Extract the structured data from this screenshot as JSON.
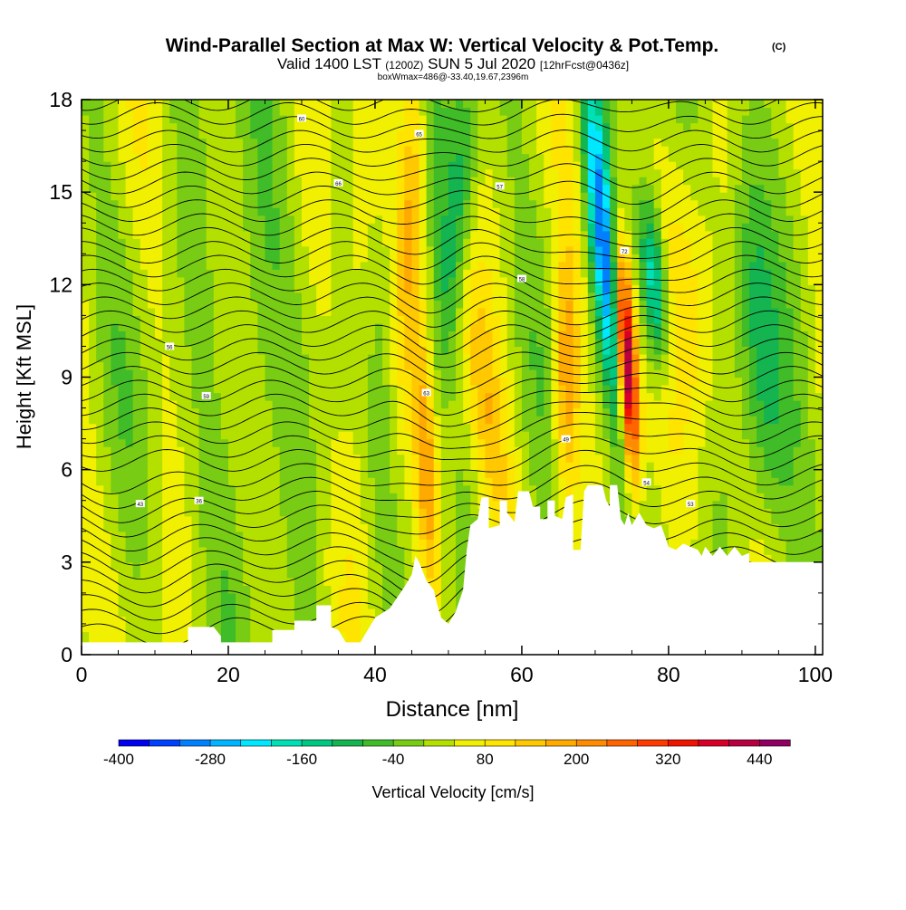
{
  "chart_data": {
    "type": "heatmap",
    "title": "Wind-Parallel Section at Max W: Vertical Velocity & Pot.Temp.",
    "title_mark": "(C)",
    "subtitle": {
      "valid_prefix": "Valid 1400 LST",
      "utc": "(1200Z)",
      "date": "SUN 5 Jul 2020",
      "forecast": "[12hrFcst@0436z]"
    },
    "note": "boxWmax=486@-33.40,19.67,2396m",
    "xlabel": "Distance [nm]",
    "ylabel": "Height [Kft MSL]",
    "xlim": [
      0,
      101
    ],
    "ylim": [
      0,
      18
    ],
    "x_ticks": [
      "0",
      "20",
      "40",
      "60",
      "80",
      "100"
    ],
    "y_ticks": [
      "0",
      "3",
      "6",
      "9",
      "12",
      "15",
      "18"
    ],
    "colorbar": {
      "label": "Vertical Velocity [cm/s]",
      "tick_labels": [
        "-400",
        "-280",
        "-160",
        "-40",
        "80",
        "200",
        "320",
        "440"
      ],
      "levels": [
        -400,
        -360,
        -320,
        -280,
        -240,
        -200,
        -160,
        -120,
        -80,
        -40,
        0,
        40,
        80,
        120,
        160,
        200,
        240,
        280,
        320,
        360,
        400,
        440,
        480
      ],
      "colors": [
        "#0000f0",
        "#0040ff",
        "#0080ff",
        "#00b4ff",
        "#00e8ff",
        "#00e0b4",
        "#00c880",
        "#14b450",
        "#40bc28",
        "#78cc14",
        "#b4e000",
        "#f0f000",
        "#ffe400",
        "#ffc800",
        "#ffaa00",
        "#ff8c00",
        "#ff6400",
        "#ff3c00",
        "#f01400",
        "#d80028",
        "#b80040",
        "#900060"
      ]
    },
    "terrain_kft": [
      [
        0,
        0.4
      ],
      [
        3,
        0.4
      ],
      [
        8,
        0.4
      ],
      [
        12,
        0.4
      ],
      [
        14.5,
        0.4
      ],
      [
        14.5,
        0.9
      ],
      [
        16,
        0.9
      ],
      [
        18,
        0.9
      ],
      [
        19,
        0.6
      ],
      [
        19,
        0.4
      ],
      [
        26,
        0.4
      ],
      [
        26,
        0.8
      ],
      [
        29,
        0.8
      ],
      [
        29,
        1.1
      ],
      [
        32,
        1.1
      ],
      [
        32,
        1.6
      ],
      [
        34,
        1.6
      ],
      [
        34,
        0.9
      ],
      [
        35,
        0.8
      ],
      [
        36,
        0.4
      ],
      [
        38,
        0.4
      ],
      [
        39,
        0.8
      ],
      [
        40,
        1.2
      ],
      [
        42,
        1.5
      ],
      [
        44,
        2.2
      ],
      [
        45,
        2.6
      ],
      [
        45.5,
        3.2
      ],
      [
        46,
        3.0
      ],
      [
        47,
        2.4
      ],
      [
        48,
        2.1
      ],
      [
        48.5,
        1.6
      ],
      [
        49,
        1.2
      ],
      [
        50,
        1.0
      ],
      [
        51,
        1.4
      ],
      [
        52,
        2.1
      ],
      [
        52.5,
        3.4
      ],
      [
        53,
        4.2
      ],
      [
        54,
        4.4
      ],
      [
        54.5,
        5.1
      ],
      [
        55.5,
        5.1
      ],
      [
        55.5,
        4.1
      ],
      [
        57,
        4.2
      ],
      [
        57,
        5.0
      ],
      [
        58,
        5.0
      ],
      [
        58,
        4.6
      ],
      [
        59,
        4.3
      ],
      [
        59.5,
        5.3
      ],
      [
        61,
        5.3
      ],
      [
        61.5,
        4.8
      ],
      [
        62.5,
        4.8
      ],
      [
        62.5,
        4.4
      ],
      [
        63.5,
        4.4
      ],
      [
        63.5,
        5.0
      ],
      [
        64.5,
        5.0
      ],
      [
        64.5,
        4.5
      ],
      [
        65.5,
        4.4
      ],
      [
        66,
        5.1
      ],
      [
        67,
        5.2
      ],
      [
        67,
        4.1
      ],
      [
        67,
        3.4
      ],
      [
        68,
        3.4
      ],
      [
        68.5,
        5.3
      ],
      [
        69,
        5.5
      ],
      [
        71,
        5.5
      ],
      [
        71.5,
        5.0
      ],
      [
        72,
        4.8
      ],
      [
        72,
        5.5
      ],
      [
        73,
        5.5
      ],
      [
        73.5,
        4.4
      ],
      [
        74,
        4.2
      ],
      [
        74.5,
        4.6
      ],
      [
        75,
        4.2
      ],
      [
        76,
        4.6
      ],
      [
        77,
        4.2
      ],
      [
        78,
        4.1
      ],
      [
        79,
        4.2
      ],
      [
        80,
        3.5
      ],
      [
        81,
        3.4
      ],
      [
        82,
        3.6
      ],
      [
        83,
        3.5
      ],
      [
        84,
        3.4
      ],
      [
        84.5,
        3.2
      ],
      [
        85,
        3.5
      ],
      [
        86,
        3.2
      ],
      [
        87,
        3.5
      ],
      [
        88,
        3.2
      ],
      [
        89,
        3.5
      ],
      [
        90,
        3.2
      ],
      [
        91,
        3.3
      ],
      [
        91,
        3.0
      ],
      [
        96,
        3.0
      ],
      [
        101,
        3.0
      ]
    ],
    "updraft_core": {
      "x": 74.3,
      "y_range": [
        6.5,
        13.0
      ],
      "value_cm_s": 486
    },
    "downdraft_core": {
      "x": 71.0,
      "y_range": [
        9.0,
        18.0
      ],
      "value_cm_s": -320
    },
    "isentrope_labels": [
      "43",
      "36",
      "56",
      "59",
      "60",
      "66",
      "65",
      "63",
      "57",
      "58",
      "49",
      "72",
      "54",
      "53"
    ]
  }
}
